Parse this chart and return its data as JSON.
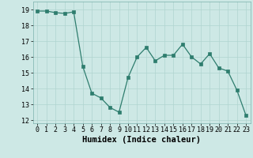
{
  "x": [
    0,
    1,
    2,
    3,
    4,
    5,
    6,
    7,
    8,
    9,
    10,
    11,
    12,
    13,
    14,
    15,
    16,
    17,
    18,
    19,
    20,
    21,
    22,
    23
  ],
  "y": [
    18.9,
    18.9,
    18.8,
    18.75,
    18.85,
    15.4,
    13.7,
    13.4,
    12.8,
    12.5,
    14.7,
    16.0,
    16.6,
    15.75,
    16.1,
    16.1,
    16.8,
    16.0,
    15.55,
    16.2,
    15.3,
    15.1,
    13.9,
    12.3
  ],
  "xlabel": "Humidex (Indice chaleur)",
  "ylim": [
    11.8,
    19.5
  ],
  "xlim": [
    -0.5,
    23.5
  ],
  "yticks": [
    12,
    13,
    14,
    15,
    16,
    17,
    18,
    19
  ],
  "xticks": [
    0,
    1,
    2,
    3,
    4,
    5,
    6,
    7,
    8,
    9,
    10,
    11,
    12,
    13,
    14,
    15,
    16,
    17,
    18,
    19,
    20,
    21,
    22,
    23
  ],
  "line_color": "#2e7d6e",
  "marker_color": "#2e7d6e",
  "bg_color": "#cde8e5",
  "grid_color": "#b0d4d0",
  "tick_label_fontsize": 6.0,
  "xlabel_fontsize": 7.5
}
